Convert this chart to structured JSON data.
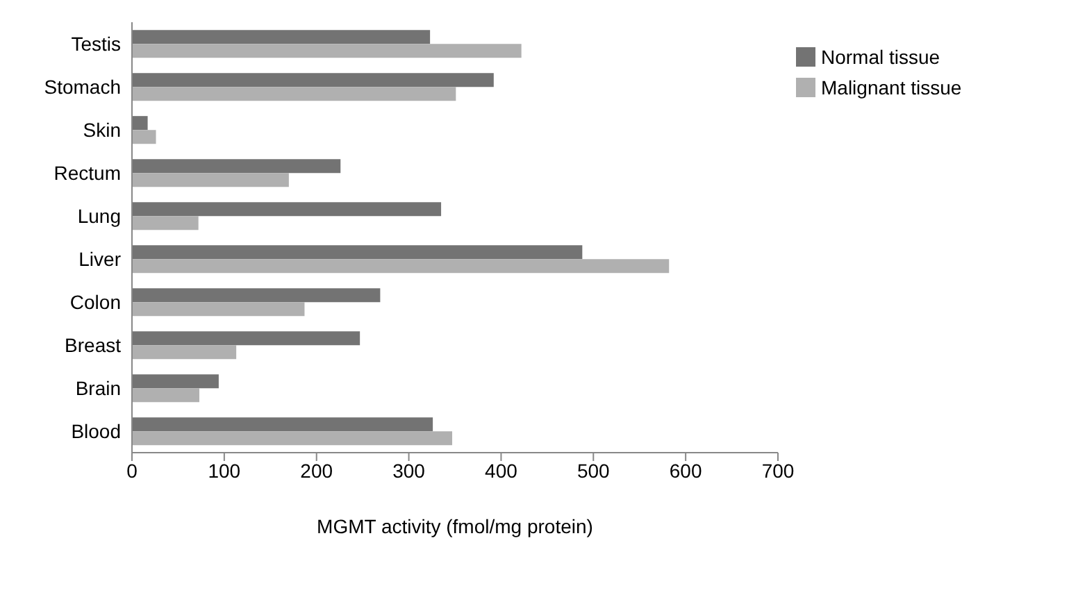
{
  "chart_data": {
    "type": "bar",
    "orientation": "horizontal",
    "xlabel": "MGMT activity (fmol/mg protein)",
    "categories": [
      "Testis",
      "Stomach",
      "Skin",
      "Rectum",
      "Lung",
      "Liver",
      "Colon",
      "Breast",
      "Brain",
      "Blood"
    ],
    "series": [
      {
        "name": "Normal tissue",
        "color": "#737373",
        "values": [
          323,
          392,
          17,
          226,
          335,
          488,
          269,
          247,
          94,
          326
        ]
      },
      {
        "name": "Malignant tissue",
        "color": "#b0b0b0",
        "values": [
          422,
          351,
          26,
          170,
          72,
          582,
          187,
          113,
          73,
          347
        ]
      }
    ],
    "xlim": [
      0,
      700
    ],
    "xticks": [
      0,
      100,
      200,
      300,
      400,
      500,
      600,
      700
    ],
    "grid": false,
    "legend": "top right"
  }
}
